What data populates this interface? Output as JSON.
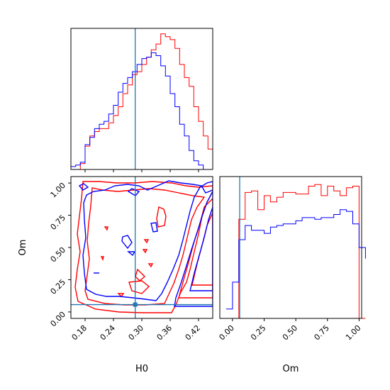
{
  "chart_data": [
    {
      "type": "histogram",
      "panel": "H0 marginal",
      "truth": 0.286,
      "colors": {
        "red": "#ff0000",
        "blue": "#0000ff",
        "truth": "#1f77b4"
      },
      "edges": [
        0.15,
        0.16,
        0.17,
        0.18,
        0.19,
        0.2,
        0.21,
        0.22,
        0.23,
        0.24,
        0.25,
        0.26,
        0.27,
        0.28,
        0.29,
        0.3,
        0.31,
        0.32,
        0.33,
        0.34,
        0.35,
        0.36,
        0.37,
        0.38,
        0.39,
        0.4,
        0.41,
        0.42,
        0.43,
        0.44,
        0.45
      ],
      "series": [
        {
          "color": "red",
          "values": [
            0,
            0,
            4,
            16,
            23,
            26,
            28,
            28,
            32,
            37,
            43,
            52,
            58,
            65,
            67,
            72,
            77,
            82,
            86,
            93,
            91,
            89,
            83,
            72,
            63,
            57,
            43,
            33,
            23,
            14,
            11
          ]
        },
        {
          "color": "blue",
          "values": [
            2,
            3,
            5,
            17,
            22,
            28,
            31,
            33,
            38,
            44,
            53,
            59,
            63,
            67,
            72,
            76,
            77,
            80,
            78,
            71,
            64,
            52,
            43,
            31,
            23,
            13,
            6,
            3,
            0,
            0,
            0
          ]
        }
      ],
      "xlim": [
        0.15,
        0.45
      ]
    },
    {
      "type": "contour",
      "panel": "H0 vs Om",
      "xlabel": "H0",
      "ylabel": "Om",
      "xticks": [
        "0.18",
        "0.24",
        "0.30",
        "0.36",
        "0.42"
      ],
      "yticks": [
        "0.00",
        "0.25",
        "0.50",
        "0.75",
        "1.00"
      ],
      "xlim": [
        0.15,
        0.45
      ],
      "ylim": [
        -0.05,
        1.05
      ],
      "truth": {
        "H0": 0.286,
        "Om": 0.057
      },
      "series": [
        "red",
        "blue"
      ]
    },
    {
      "type": "histogram",
      "panel": "Om marginal",
      "xlabel": "Om",
      "xticks": [
        "0.00",
        "0.25",
        "0.50",
        "0.75",
        "1.00"
      ],
      "xlim": [
        -0.1,
        1.02
      ],
      "truth": 0.057,
      "edges": [
        -0.05,
        0.0,
        0.05,
        0.1,
        0.15,
        0.2,
        0.25,
        0.3,
        0.35,
        0.4,
        0.45,
        0.5,
        0.55,
        0.6,
        0.65,
        0.7,
        0.75,
        0.8,
        0.85,
        0.9,
        0.95,
        1.0,
        1.05
      ],
      "series": [
        {
          "color": "red",
          "values": [
            0,
            0,
            63,
            80,
            81,
            69,
            78,
            74,
            77,
            80,
            80,
            79,
            79,
            84,
            85,
            78,
            84,
            81,
            78,
            83,
            84,
            0,
            0
          ]
        },
        {
          "color": "blue",
          "values": [
            6,
            23,
            50,
            59,
            56,
            56,
            54,
            58,
            59,
            60,
            60,
            62,
            64,
            64,
            63,
            64,
            64,
            66,
            69,
            68,
            60,
            45,
            38
          ]
        }
      ]
    }
  ]
}
